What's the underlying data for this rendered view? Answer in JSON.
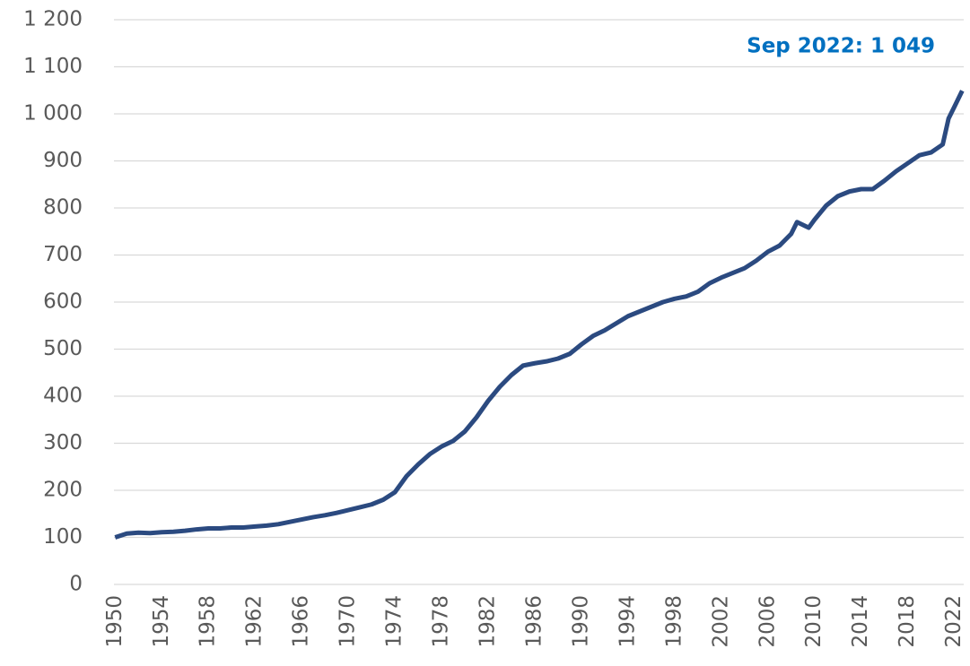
{
  "chart_data": {
    "type": "line",
    "annotation": "Sep 2022: 1 049",
    "x": [
      1950,
      1951,
      1952,
      1953,
      1954,
      1955,
      1956,
      1957,
      1958,
      1959,
      1960,
      1961,
      1962,
      1963,
      1964,
      1965,
      1966,
      1967,
      1968,
      1969,
      1970,
      1971,
      1972,
      1973,
      1974,
      1975,
      1976,
      1977,
      1978,
      1979,
      1980,
      1981,
      1982,
      1983,
      1984,
      1985,
      1986,
      1987,
      1988,
      1989,
      1990,
      1991,
      1992,
      1993,
      1994,
      1995,
      1996,
      1997,
      1998,
      1999,
      2000,
      2001,
      2002,
      2003,
      2004,
      2005,
      2006,
      2007,
      2008,
      2008.5,
      2009.5,
      2010,
      2011,
      2012,
      2013,
      2014,
      2015,
      2016,
      2017,
      2018,
      2019,
      2020,
      2021,
      2021.5,
      2022,
      2022.67
    ],
    "series": [
      {
        "color": "#2b4a80",
        "values": [
          100,
          108,
          110,
          109,
          111,
          112,
          114,
          117,
          119,
          119,
          121,
          121,
          123,
          125,
          128,
          133,
          138,
          143,
          147,
          152,
          158,
          164,
          170,
          180,
          196,
          230,
          255,
          277,
          293,
          305,
          325,
          355,
          390,
          420,
          445,
          465,
          470,
          474,
          480,
          490,
          510,
          528,
          540,
          555,
          570,
          580,
          590,
          600,
          607,
          612,
          622,
          640,
          652,
          662,
          672,
          688,
          707,
          720,
          745,
          770,
          758,
          775,
          805,
          825,
          835,
          840,
          840,
          858,
          878,
          895,
          912,
          918,
          935,
          990,
          1015,
          1049
        ]
      }
    ],
    "xlim": [
      1949.9,
      2022.8
    ],
    "xticks": [
      1950,
      1954,
      1958,
      1962,
      1966,
      1970,
      1974,
      1978,
      1982,
      1986,
      1990,
      1994,
      1998,
      2002,
      2006,
      2010,
      2014,
      2018,
      2022
    ],
    "ylim": [
      0,
      1200
    ],
    "yticks": [
      0,
      100,
      200,
      300,
      400,
      500,
      600,
      700,
      800,
      900,
      {
        "value": 1000,
        "label": "1 000"
      },
      {
        "value": 1100,
        "label": "1 100"
      },
      {
        "value": 1200,
        "label": "1 200"
      }
    ],
    "grid": true
  }
}
